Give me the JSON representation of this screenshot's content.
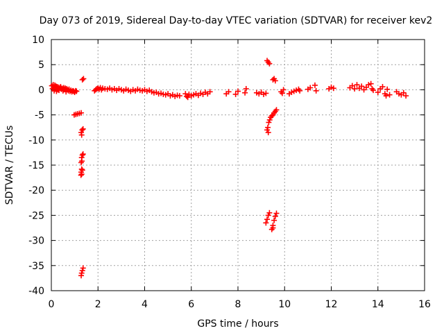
{
  "chart_data": {
    "type": "scatter",
    "title": "Day 073 of 2019, Sidereal Day-to-day VTEC variation (SDTVAR) for receiver kev2",
    "xlabel": "GPS time / hours",
    "ylabel": "SDTVAR / TECUs",
    "xlim": [
      0,
      16
    ],
    "ylim": [
      -40,
      10
    ],
    "xticks": [
      "0",
      "2",
      "4",
      "6",
      "8",
      "10",
      "12",
      "14",
      "16"
    ],
    "yticks": [
      "10",
      "5",
      "0",
      "-5",
      "-10",
      "-15",
      "-20",
      "-25",
      "-30",
      "-35",
      "-40"
    ],
    "grid": true,
    "marker": "+",
    "color": "#ff0000",
    "series": [
      {
        "name": "kev2",
        "points": [
          [
            0.02,
            0.8
          ],
          [
            0.05,
            0.2
          ],
          [
            0.08,
            1.0
          ],
          [
            0.1,
            0.5
          ],
          [
            0.12,
            -0.2
          ],
          [
            0.15,
            0.9
          ],
          [
            0.18,
            0.3
          ],
          [
            0.2,
            0.7
          ],
          [
            0.22,
            -0.3
          ],
          [
            0.25,
            0.6
          ],
          [
            0.28,
            0.0
          ],
          [
            0.3,
            0.5
          ],
          [
            0.33,
            -0.1
          ],
          [
            0.36,
            0.4
          ],
          [
            0.4,
            0.6
          ],
          [
            0.43,
            0.1
          ],
          [
            0.46,
            0.3
          ],
          [
            0.5,
            -0.2
          ],
          [
            0.53,
            0.4
          ],
          [
            0.56,
            0.1
          ],
          [
            0.6,
            0.3
          ],
          [
            0.63,
            -0.4
          ],
          [
            0.66,
            0.2
          ],
          [
            0.7,
            0.0
          ],
          [
            0.73,
            -0.2
          ],
          [
            0.76,
            0.1
          ],
          [
            0.8,
            -0.3
          ],
          [
            0.84,
            -0.1
          ],
          [
            0.88,
            -0.4
          ],
          [
            0.92,
            -0.2
          ],
          [
            0.96,
            -0.3
          ],
          [
            1.0,
            -0.5
          ],
          [
            1.04,
            -0.2
          ],
          [
            1.08,
            -0.3
          ],
          [
            0.98,
            -5.0
          ],
          [
            1.05,
            -4.9
          ],
          [
            1.12,
            -4.8
          ],
          [
            1.2,
            -4.7
          ],
          [
            1.28,
            -4.6
          ],
          [
            1.33,
            2.0
          ],
          [
            1.38,
            2.2
          ],
          [
            1.28,
            -8.5
          ],
          [
            1.32,
            -8.0
          ],
          [
            1.36,
            -7.8
          ],
          [
            1.3,
            -9.0
          ],
          [
            1.3,
            -13.5
          ],
          [
            1.33,
            -13.0
          ],
          [
            1.36,
            -12.8
          ],
          [
            1.28,
            -14.5
          ],
          [
            1.31,
            -14.2
          ],
          [
            1.3,
            -15.8
          ],
          [
            1.28,
            -16.4
          ],
          [
            1.33,
            -16.0
          ],
          [
            1.27,
            -17.0
          ],
          [
            1.3,
            -16.8
          ],
          [
            1.3,
            -36.5
          ],
          [
            1.33,
            -36.0
          ],
          [
            1.36,
            -35.5
          ],
          [
            1.28,
            -37.0
          ],
          [
            1.85,
            -0.2
          ],
          [
            1.9,
            0.0
          ],
          [
            1.95,
            0.2
          ],
          [
            2.0,
            0.3
          ],
          [
            2.05,
            0.1
          ],
          [
            2.1,
            0.4
          ],
          [
            2.15,
            0.0
          ],
          [
            2.2,
            0.3
          ],
          [
            2.3,
            0.2
          ],
          [
            2.4,
            0.1
          ],
          [
            2.5,
            0.3
          ],
          [
            2.6,
            0.0
          ],
          [
            2.7,
            0.2
          ],
          [
            2.8,
            -0.1
          ],
          [
            2.9,
            0.2
          ],
          [
            3.0,
            0.0
          ],
          [
            3.1,
            -0.2
          ],
          [
            3.2,
            0.1
          ],
          [
            3.3,
            -0.1
          ],
          [
            3.4,
            -0.3
          ],
          [
            3.5,
            0.0
          ],
          [
            3.6,
            -0.2
          ],
          [
            3.7,
            0.1
          ],
          [
            3.8,
            -0.1
          ],
          [
            3.9,
            -0.2
          ],
          [
            4.0,
            0.0
          ],
          [
            4.1,
            -0.3
          ],
          [
            4.2,
            -0.1
          ],
          [
            4.3,
            -0.4
          ],
          [
            4.4,
            -0.6
          ],
          [
            4.5,
            -0.5
          ],
          [
            4.6,
            -0.8
          ],
          [
            4.7,
            -0.7
          ],
          [
            4.8,
            -0.9
          ],
          [
            4.9,
            -1.0
          ],
          [
            5.0,
            -0.8
          ],
          [
            5.1,
            -1.2
          ],
          [
            5.2,
            -1.0
          ],
          [
            5.3,
            -1.3
          ],
          [
            5.4,
            -1.1
          ],
          [
            5.5,
            -1.2
          ],
          [
            5.75,
            -0.8
          ],
          [
            5.8,
            -1.3
          ],
          [
            5.85,
            -1.5
          ],
          [
            5.9,
            -0.9
          ],
          [
            6.0,
            -1.2
          ],
          [
            6.1,
            -1.0
          ],
          [
            6.2,
            -0.8
          ],
          [
            6.3,
            -1.1
          ],
          [
            6.4,
            -0.7
          ],
          [
            6.5,
            -0.9
          ],
          [
            6.6,
            -0.5
          ],
          [
            6.7,
            -0.8
          ],
          [
            6.8,
            -0.4
          ],
          [
            7.5,
            -0.8
          ],
          [
            7.6,
            -0.4
          ],
          [
            7.9,
            -0.9
          ],
          [
            8.0,
            -0.3
          ],
          [
            8.3,
            -0.6
          ],
          [
            8.35,
            0.2
          ],
          [
            8.8,
            -0.6
          ],
          [
            8.9,
            -0.8
          ],
          [
            9.0,
            -0.5
          ],
          [
            9.1,
            -0.9
          ],
          [
            9.2,
            -0.7
          ],
          [
            9.25,
            5.8
          ],
          [
            9.3,
            5.5
          ],
          [
            9.35,
            5.2
          ],
          [
            9.25,
            -8.0
          ],
          [
            9.28,
            -7.5
          ],
          [
            9.3,
            -8.5
          ],
          [
            9.32,
            -6.5
          ],
          [
            9.36,
            -6.0
          ],
          [
            9.4,
            -5.5
          ],
          [
            9.45,
            -5.2
          ],
          [
            9.5,
            -5.0
          ],
          [
            9.55,
            -4.6
          ],
          [
            9.6,
            -4.3
          ],
          [
            9.65,
            -4.0
          ],
          [
            9.5,
            2.0
          ],
          [
            9.55,
            2.2
          ],
          [
            9.6,
            1.8
          ],
          [
            9.2,
            -26.5
          ],
          [
            9.25,
            -25.8
          ],
          [
            9.3,
            -25.0
          ],
          [
            9.35,
            -24.5
          ],
          [
            9.45,
            -27.8
          ],
          [
            9.5,
            -27.0
          ],
          [
            9.55,
            -26.0
          ],
          [
            9.6,
            -25.2
          ],
          [
            9.65,
            -24.6
          ],
          [
            9.5,
            -27.5
          ],
          [
            9.85,
            -0.4
          ],
          [
            9.9,
            -0.7
          ],
          [
            9.95,
            0.0
          ],
          [
            10.2,
            -0.8
          ],
          [
            10.3,
            -0.5
          ],
          [
            10.4,
            -0.3
          ],
          [
            10.5,
            -0.1
          ],
          [
            10.6,
            0.1
          ],
          [
            10.65,
            -0.2
          ],
          [
            11.0,
            0.1
          ],
          [
            11.1,
            0.4
          ],
          [
            11.3,
            0.9
          ],
          [
            11.35,
            -0.2
          ],
          [
            11.9,
            0.2
          ],
          [
            12.0,
            0.5
          ],
          [
            12.1,
            0.3
          ],
          [
            12.8,
            0.4
          ],
          [
            12.9,
            0.8
          ],
          [
            13.0,
            0.2
          ],
          [
            13.1,
            1.0
          ],
          [
            13.2,
            0.3
          ],
          [
            13.3,
            0.7
          ],
          [
            13.4,
            0.0
          ],
          [
            13.5,
            0.5
          ],
          [
            13.6,
            1.0
          ],
          [
            13.7,
            1.2
          ],
          [
            13.75,
            0.2
          ],
          [
            13.8,
            -0.1
          ],
          [
            14.0,
            -0.5
          ],
          [
            14.1,
            0.2
          ],
          [
            14.2,
            0.6
          ],
          [
            14.3,
            -0.8
          ],
          [
            14.35,
            -1.2
          ],
          [
            14.4,
            0.1
          ],
          [
            14.5,
            -1.0
          ],
          [
            14.8,
            -0.4
          ],
          [
            14.9,
            -0.8
          ],
          [
            15.0,
            -1.0
          ],
          [
            15.1,
            -0.6
          ],
          [
            15.2,
            -1.2
          ]
        ]
      }
    ]
  }
}
